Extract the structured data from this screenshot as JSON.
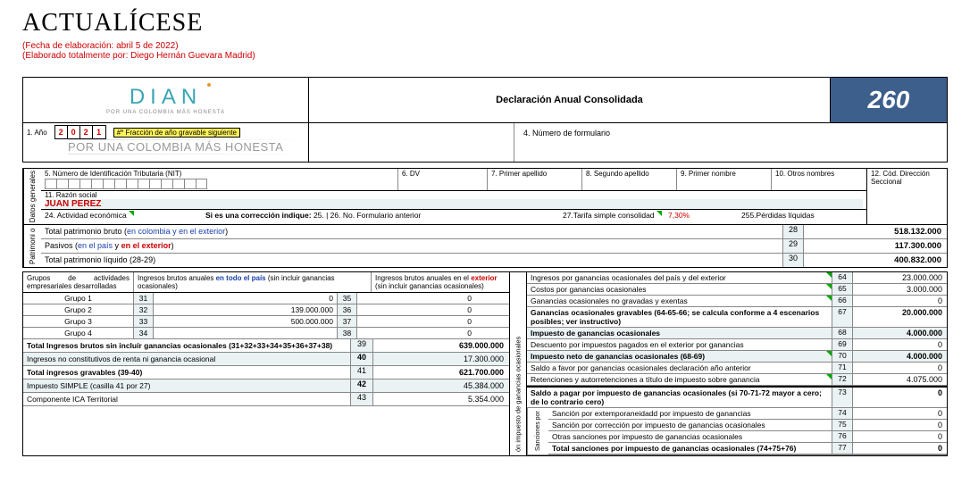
{
  "brand": "ACTUALÍCESE",
  "meta": {
    "line1": "(Fecha de elaboración: abril 5 de 2022)",
    "line2": "(Elaborado totalmente por: Diego Hernán Guevara Madrid)"
  },
  "header": {
    "logo_text": "DIAN",
    "logo_sub": "POR UNA COLOMBIA MÁS HONESTA",
    "title": "Declaración Anual Consolidada",
    "form_number": "260"
  },
  "year_row": {
    "label": "1. Año",
    "digits": [
      "2",
      "0",
      "2",
      "1"
    ],
    "fraccion": "#* Fracción de año gravable siguiente",
    "slogan": "POR UNA COLOMBIA MÁS HONESTA",
    "num_form_label": "4. Número de formulario"
  },
  "dg": {
    "side": "Datos generales",
    "c5": "5. Número de Identificación Tributaria (NIT)",
    "c6": "6. DV",
    "c7": "7. Primer apellido",
    "c8": "8. Segundo apellido",
    "c9": "9. Primer nombre",
    "c10": "10. Otros nombres",
    "c11_lab": "11. Razón social",
    "c11_val": "JUAN PEREZ",
    "c12": "12. Cód. Dirección Seccional",
    "c24": "24. Actividad económica",
    "correccion": "Si es una corrección indique:",
    "c25_26": "25. | 26. No. Formulario anterior",
    "c27_lab": "27.Tarifa simple consolidad",
    "c27_val": "7,30%",
    "c255": "255.Pérdidas líquidas"
  },
  "pat": {
    "side": "Patrimoni o",
    "rows": [
      {
        "lab_a": "Total patrimonio bruto (",
        "lab_b": "en colombia y en el exterior",
        "lab_c": ")",
        "n": "28",
        "v": "518.132.000"
      },
      {
        "lab_a": "Pasivos (",
        "lab_b": "en el país",
        "lab_m": " y ",
        "lab_d": "en el exterior",
        "lab_c": ")",
        "n": "29",
        "v": "117.300.000"
      },
      {
        "lab_a": "Total patrimonio líquido (28-29)",
        "n": "30",
        "v": "400.832.000"
      }
    ]
  },
  "grp": {
    "head_a": "Grupos de actividades empresariales desarrolladas",
    "head_b_pre": "Ingresos brutos anuales ",
    "head_b_hi": "en todo el país",
    "head_b_post": " (sin incluir ganancias ocasionales)",
    "head_c_pre": "Ingresos brutos anuales en el ",
    "head_c_hi": "exterior",
    "head_c_post": " (sin incluir ganancias ocasionales)",
    "rows": [
      {
        "g": "Grupo 1",
        "n1": "31",
        "v1": "0",
        "n2": "35",
        "v2": "0"
      },
      {
        "g": "Grupo 2",
        "n1": "32",
        "v1": "139.000.000",
        "n2": "36",
        "v2": "0"
      },
      {
        "g": "Grupo 3",
        "n1": "33",
        "v1": "500.000.000",
        "n2": "37",
        "v2": "0"
      },
      {
        "g": "Grupo 4",
        "n1": "34",
        "v1": "",
        "n2": "38",
        "v2": "0"
      }
    ]
  },
  "left_lines": [
    {
      "lab": "Total Ingresos brutos sin incluír ganancias ocasionales (31+32+33+34+35+36+37+38)",
      "n": "39",
      "v": "639.000.000",
      "bold": true
    },
    {
      "lab": "Ingresos no constitutivos de renta ni ganancia ocasional",
      "n": "40",
      "v": "17.300.000",
      "hl": true
    },
    {
      "lab": "Total ingresos gravables (39-40)",
      "n": "41",
      "v": "621.700.000",
      "bold": true
    },
    {
      "lab": "Impuesto SIMPLE (casilla 41 por 27)",
      "n": "42",
      "v": "45.384.000",
      "hl": true
    },
    {
      "lab": "Componente ICA Territorial",
      "n": "43",
      "v": "5.354.000"
    }
  ],
  "mid_label": "ón impuesto de ganancias ocasionales",
  "right_lines": [
    {
      "lab": "Ingresos por ganancias ocasionales del país y del exterior",
      "n": "64",
      "v": "23.000.000",
      "cg": true
    },
    {
      "lab": "Costos por ganancias ocasionales",
      "n": "65",
      "v": "3.000.000",
      "cg": true
    },
    {
      "lab": "Ganancias ocasionales no gravadas y exentas",
      "n": "66",
      "v": "0",
      "cg": true
    },
    {
      "lab": "Ganancias ocasionales gravables (64-65-66; se calcula conforme a 4 escenarios posibles; ver instructivo)",
      "n": "67",
      "v": "20.000.000",
      "bold": true
    },
    {
      "lab": "Impuesto de ganancias ocasionales",
      "n": "68",
      "v": "4.000.000",
      "bold": true,
      "hl": true
    },
    {
      "lab": "Descuento por impuestos pagados en el exterior por ganancias",
      "n": "69",
      "v": "0"
    },
    {
      "lab": "Impuesto neto de ganancias ocasionales (68-69)",
      "n": "70",
      "v": "4.000.000",
      "bold": true,
      "hl": true,
      "cg": true
    },
    {
      "lab": "Saldo a favor por ganancias ocasionales declaración año anterior",
      "n": "71",
      "v": "0"
    },
    {
      "lab": "Retenciones y autorretenciones a título de impuesto sobre ganancia",
      "n": "72",
      "v": "4.075.000",
      "cg": true
    },
    {
      "lab": "Saldo a pagar por impuesto de ganancias ocasionales (si 70-71-72 mayor a cero; de lo contrario cero)",
      "n": "73",
      "v": "0",
      "bold": true,
      "top": true
    }
  ],
  "sanc": {
    "side": "Sanciones por",
    "rows": [
      {
        "lab": "Sanción por extemporaneidadd por impuesto de ganancias",
        "n": "74",
        "v": "0"
      },
      {
        "lab": "Sanción por corrección por impuesto de ganancias ocasionales",
        "n": "75",
        "v": "0"
      },
      {
        "lab": "Otras sanciones por impuesto de ganancias ocasionales",
        "n": "76",
        "v": "0"
      },
      {
        "lab": "Total sanciones por impuesto de ganancias ocasionales (74+75+76)",
        "n": "77",
        "v": "0",
        "bold": true
      }
    ]
  }
}
